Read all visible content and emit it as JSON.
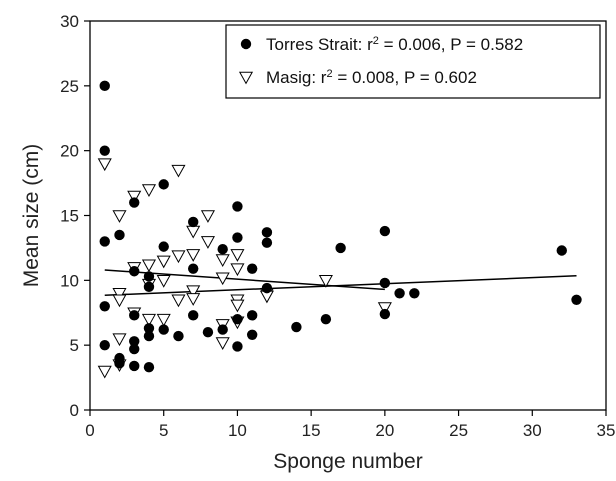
{
  "chart_data": {
    "type": "scatter",
    "title": "",
    "xlabel": "Sponge number",
    "ylabel": "Mean size (cm)",
    "xlim": [
      0,
      35
    ],
    "ylim": [
      0,
      30
    ],
    "xticks": [
      0,
      5,
      10,
      15,
      20,
      25,
      30,
      35
    ],
    "yticks": [
      0,
      5,
      10,
      15,
      20,
      25,
      30
    ],
    "grid": false,
    "legend_position": "top-right",
    "series": [
      {
        "name": "Torres Strait",
        "legend_prefix": "Torres Strait: r",
        "legend_suffix": " = 0.006, P = 0.582",
        "marker": "filled-circle",
        "color": "#000000",
        "points": [
          [
            1,
            25
          ],
          [
            1,
            20
          ],
          [
            1,
            13
          ],
          [
            1,
            8
          ],
          [
            1,
            5
          ],
          [
            2,
            13.5
          ],
          [
            2,
            4
          ],
          [
            2,
            3.6
          ],
          [
            3,
            16
          ],
          [
            3,
            10.7
          ],
          [
            3,
            7.3
          ],
          [
            3,
            5.3
          ],
          [
            3,
            4.7
          ],
          [
            3,
            3.4
          ],
          [
            4,
            10.3
          ],
          [
            4,
            9.5
          ],
          [
            4,
            6.3
          ],
          [
            4,
            5.7
          ],
          [
            4,
            3.3
          ],
          [
            5,
            17.4
          ],
          [
            5,
            12.6
          ],
          [
            5,
            6.2
          ],
          [
            6,
            5.7
          ],
          [
            7,
            14.5
          ],
          [
            7,
            10.9
          ],
          [
            7,
            7.3
          ],
          [
            8,
            6
          ],
          [
            9,
            12.4
          ],
          [
            9,
            6.2
          ],
          [
            10,
            15.7
          ],
          [
            10,
            13.3
          ],
          [
            10,
            7
          ],
          [
            10,
            4.9
          ],
          [
            11,
            10.9
          ],
          [
            11,
            7.3
          ],
          [
            11,
            5.8
          ],
          [
            12,
            13.7
          ],
          [
            12,
            12.9
          ],
          [
            12,
            9.4
          ],
          [
            14,
            6.4
          ],
          [
            16,
            7
          ],
          [
            17,
            12.5
          ],
          [
            20,
            13.8
          ],
          [
            20,
            9.8
          ],
          [
            20,
            7.4
          ],
          [
            21,
            9
          ],
          [
            22,
            9
          ],
          [
            32,
            12.3
          ],
          [
            33,
            8.5
          ]
        ],
        "trend": {
          "x": [
            1,
            33
          ],
          "y": [
            8.85,
            10.35
          ]
        }
      },
      {
        "name": "Masig",
        "legend_prefix": "Masig: r",
        "legend_suffix": " = 0.008, P = 0.602",
        "marker": "open-triangle-down",
        "color": "#000000",
        "points": [
          [
            1,
            19
          ],
          [
            1,
            3
          ],
          [
            2,
            15
          ],
          [
            2,
            9
          ],
          [
            2,
            8.5
          ],
          [
            2,
            5.5
          ],
          [
            2,
            3.5
          ],
          [
            3,
            16.5
          ],
          [
            3,
            11
          ],
          [
            3,
            7.5
          ],
          [
            4,
            17
          ],
          [
            4,
            11.2
          ],
          [
            4,
            9.7
          ],
          [
            4,
            7
          ],
          [
            5,
            11.5
          ],
          [
            5,
            10
          ],
          [
            5,
            7
          ],
          [
            6,
            18.5
          ],
          [
            6,
            11.9
          ],
          [
            6,
            8.5
          ],
          [
            7,
            13.8
          ],
          [
            7,
            12
          ],
          [
            7,
            9.2
          ],
          [
            7,
            8.6
          ],
          [
            8,
            15
          ],
          [
            8,
            13
          ],
          [
            9,
            11.6
          ],
          [
            9,
            10.2
          ],
          [
            9,
            6.6
          ],
          [
            9,
            5.2
          ],
          [
            10,
            12
          ],
          [
            10,
            10.9
          ],
          [
            10,
            8.5
          ],
          [
            10,
            8.1
          ],
          [
            10,
            6.8
          ],
          [
            12,
            9
          ],
          [
            12,
            8.8
          ],
          [
            16,
            10
          ],
          [
            20,
            7.9
          ]
        ],
        "trend": {
          "x": [
            1,
            20
          ],
          "y": [
            10.8,
            9.3
          ]
        }
      }
    ]
  }
}
